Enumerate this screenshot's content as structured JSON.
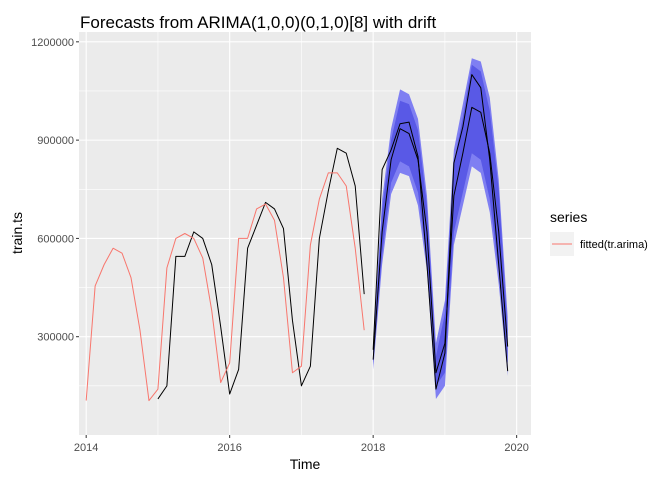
{
  "chart_data": {
    "type": "line",
    "title": "Forecasts from ARIMA(1,0,0)(0,1,0)[8] with drift",
    "xlabel": "Time",
    "ylabel": "train.ts",
    "xlim": [
      2013.9,
      2020.2
    ],
    "ylim": [
      0,
      1230000
    ],
    "x_ticks": [
      2014,
      2016,
      2018,
      2020
    ],
    "x_tick_labels": [
      "2014",
      "2016",
      "2018",
      "2020"
    ],
    "y_ticks": [
      300000,
      600000,
      900000,
      1200000
    ],
    "y_tick_labels": [
      "300000",
      "600000",
      "900000",
      "1200000"
    ],
    "grid": true,
    "background": "#ebebeb",
    "legend": {
      "title": "series",
      "position": "right",
      "entries": [
        {
          "name": "fitted(tr.arima)",
          "color": "#f8766d"
        }
      ]
    },
    "series": [
      {
        "name": "train.ts",
        "color": "#000000",
        "x": [
          2015.0,
          2015.125,
          2015.25,
          2015.375,
          2015.5,
          2015.625,
          2015.75,
          2015.875,
          2016.0,
          2016.125,
          2016.25,
          2016.375,
          2016.5,
          2016.625,
          2016.75,
          2016.875,
          2017.0,
          2017.125,
          2017.25,
          2017.375,
          2017.5,
          2017.625,
          2017.75,
          2017.875
        ],
        "values": [
          110000,
          150000,
          545000,
          545000,
          620000,
          600000,
          520000,
          330000,
          125000,
          200000,
          570000,
          640000,
          710000,
          690000,
          630000,
          350000,
          150000,
          210000,
          600000,
          745000,
          875000,
          860000,
          760000,
          430000
        ]
      },
      {
        "name": "fitted(tr.arima)",
        "color": "#f8766d",
        "x": [
          2014.0,
          2014.125,
          2014.25,
          2014.375,
          2014.5,
          2014.625,
          2014.75,
          2014.875,
          2015.0,
          2015.125,
          2015.25,
          2015.375,
          2015.5,
          2015.625,
          2015.75,
          2015.875,
          2016.0,
          2016.125,
          2016.25,
          2016.375,
          2016.5,
          2016.625,
          2016.75,
          2016.875,
          2017.0,
          2017.125,
          2017.25,
          2017.375,
          2017.5,
          2017.625,
          2017.75,
          2017.875
        ],
        "values": [
          105000,
          455000,
          520000,
          570000,
          555000,
          480000,
          320000,
          105000,
          140000,
          510000,
          600000,
          615000,
          600000,
          540000,
          380000,
          160000,
          220000,
          600000,
          600000,
          690000,
          705000,
          655000,
          480000,
          190000,
          210000,
          580000,
          720000,
          800000,
          800000,
          760000,
          570000,
          320000
        ]
      },
      {
        "name": "test (actual)",
        "color": "#000000",
        "x": [
          2018.0,
          2018.125,
          2018.25,
          2018.375,
          2018.5,
          2018.625,
          2018.75,
          2018.875,
          2019.0,
          2019.125,
          2019.25,
          2019.375,
          2019.5,
          2019.625,
          2019.75,
          2019.875
        ],
        "values": [
          260000,
          810000,
          870000,
          950000,
          955000,
          850000,
          520000,
          140000,
          250000,
          830000,
          940000,
          1100000,
          1060000,
          840000,
          520000,
          195000
        ]
      },
      {
        "name": "forecast mean",
        "color": "#000000",
        "x": [
          2018.0,
          2018.125,
          2018.25,
          2018.375,
          2018.5,
          2018.625,
          2018.75,
          2018.875,
          2019.0,
          2019.125,
          2019.25,
          2019.375,
          2019.5,
          2019.625,
          2019.75,
          2019.875
        ],
        "values": [
          230000,
          620000,
          840000,
          935000,
          920000,
          840000,
          620000,
          190000,
          280000,
          730000,
          860000,
          1000000,
          985000,
          860000,
          620000,
          270000
        ]
      }
    ],
    "bands": [
      {
        "name": "80% interval",
        "color": "#5959e6",
        "x": [
          2018.0,
          2018.125,
          2018.25,
          2018.375,
          2018.5,
          2018.625,
          2018.75,
          2018.875,
          2019.0,
          2019.125,
          2019.25,
          2019.375,
          2019.5,
          2019.625,
          2019.75,
          2019.875
        ],
        "lower": [
          215000,
          550000,
          770000,
          835000,
          820000,
          740000,
          530000,
          150000,
          190000,
          620000,
          740000,
          860000,
          840000,
          720000,
          500000,
          220000
        ],
        "upper": [
          255000,
          690000,
          900000,
          1020000,
          1010000,
          930000,
          700000,
          240000,
          370000,
          830000,
          970000,
          1130000,
          1110000,
          990000,
          750000,
          320000
        ]
      },
      {
        "name": "95% interval",
        "color": "#7f7ff2",
        "x": [
          2018.0,
          2018.125,
          2018.25,
          2018.375,
          2018.5,
          2018.625,
          2018.75,
          2018.875,
          2019.0,
          2019.125,
          2019.25,
          2019.375,
          2019.5,
          2019.625,
          2019.75,
          2019.875
        ],
        "lower": [
          200000,
          520000,
          735000,
          800000,
          790000,
          700000,
          500000,
          110000,
          150000,
          580000,
          700000,
          820000,
          800000,
          680000,
          460000,
          180000
        ],
        "upper": [
          270000,
          720000,
          935000,
          1055000,
          1040000,
          965000,
          730000,
          280000,
          410000,
          870000,
          1010000,
          1150000,
          1140000,
          1030000,
          780000,
          360000
        ]
      }
    ]
  }
}
